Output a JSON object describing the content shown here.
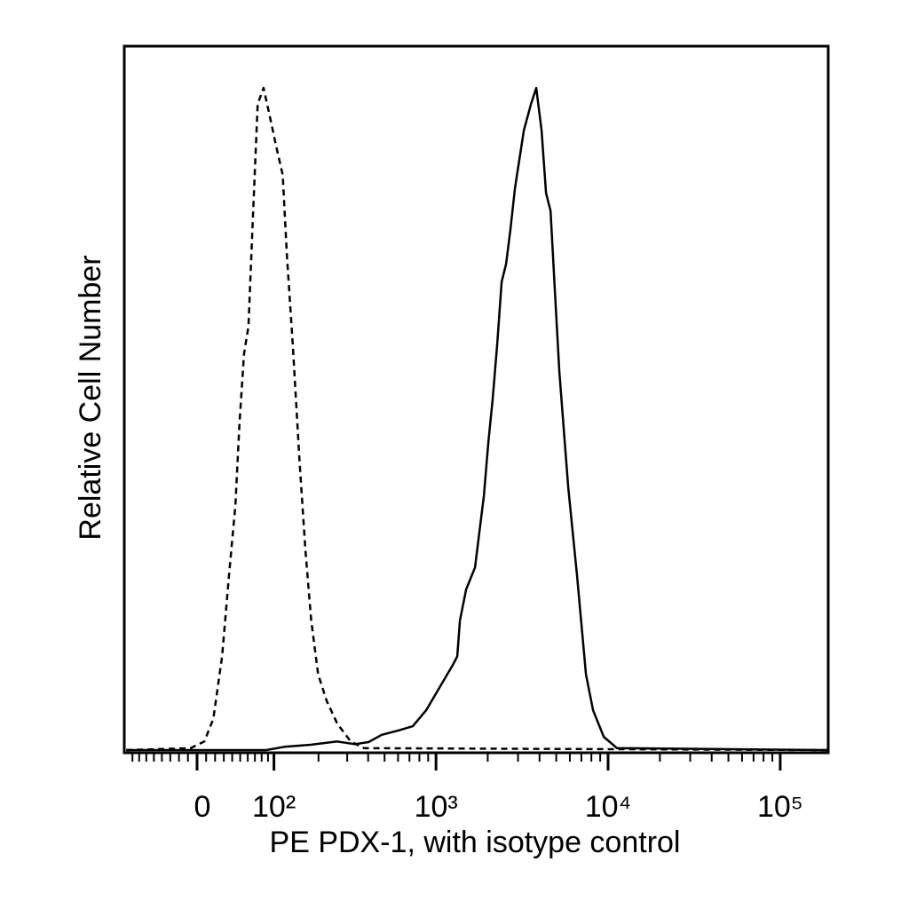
{
  "chart_data": {
    "type": "line",
    "x_label": "PE PDX-1, with isotype control",
    "y_label": "Relative Cell Number",
    "xscale": "biexponential",
    "xlim": [
      -93,
      190000
    ],
    "ylim": [
      0,
      106
    ],
    "xticks": [
      0,
      {
        "value": 100,
        "label": "10²"
      },
      {
        "value": 1000,
        "label": "10³"
      },
      {
        "value": 10000,
        "label": "10⁴"
      },
      {
        "value": 100000,
        "label": "10⁵"
      }
    ],
    "xminorticks": [
      -80,
      -70,
      -60,
      -50,
      -40,
      -30,
      -20,
      -10,
      10,
      20,
      30,
      40,
      50,
      60,
      70,
      80,
      90,
      200,
      300,
      400,
      500,
      600,
      700,
      800,
      900,
      2000,
      3000,
      4000,
      5000,
      6000,
      7000,
      8000,
      9000,
      20000,
      30000,
      40000,
      50000,
      60000,
      70000,
      80000,
      90000
    ],
    "series": [
      {
        "color": "#000000",
        "dash": "dashed",
        "x": [
          -90,
          -7,
          8,
          18,
          28,
          36,
          44,
          49,
          55,
          61,
          67,
          74,
          83,
          95,
          103,
          116,
          124,
          136,
          151,
          165,
          180,
          199,
          225,
          261,
          315,
          378,
          190000
        ],
        "values": [
          0,
          0.3,
          1.3,
          4.7,
          14.1,
          26.2,
          36.9,
          49.0,
          59.7,
          63.8,
          79.9,
          97.3,
          99.7,
          94.6,
          91.3,
          86.6,
          74.5,
          61.1,
          43.6,
          30.2,
          19.5,
          11.4,
          7.4,
          4.0,
          1.3,
          0.3,
          0
        ]
      },
      {
        "color": "#000000",
        "dash": "solid",
        "x": [
          -90,
          87,
          119,
          178,
          261,
          334,
          402,
          481,
          612,
          732,
          876,
          1047,
          1252,
          1329,
          1378,
          1498,
          1686,
          1790,
          1899,
          2015,
          2139,
          2270,
          2410,
          2557,
          2713,
          2880,
          3242,
          3567,
          3829,
          4112,
          4362,
          4633,
          4912,
          5215,
          5871,
          6611,
          7445,
          8186,
          9438,
          11283,
          190000
        ],
        "values": [
          0,
          0,
          0.5,
          0.8,
          1.3,
          0.9,
          1.2,
          2.3,
          3.0,
          3.6,
          6.0,
          9.4,
          12.8,
          14.1,
          19.5,
          24.2,
          27.5,
          32.9,
          38.3,
          46.3,
          53.0,
          61.1,
          70.5,
          73.2,
          78.5,
          84.6,
          93.3,
          97.3,
          99.7,
          93.3,
          83.9,
          81.2,
          69.1,
          57.0,
          39.6,
          26.2,
          11.4,
          6.0,
          2.0,
          0.3,
          0
        ]
      }
    ]
  }
}
